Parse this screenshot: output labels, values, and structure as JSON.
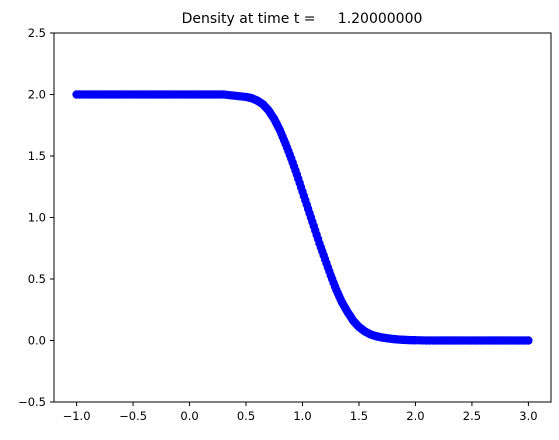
{
  "chart_data": {
    "type": "scatter",
    "title": "Density at time t =     1.20000000",
    "xlabel": "",
    "ylabel": "",
    "xlim": [
      -1.2,
      3.2
    ],
    "ylim": [
      -0.5,
      2.5
    ],
    "x_ticks": [
      -1.0,
      -0.5,
      0.0,
      0.5,
      1.0,
      1.5,
      2.0,
      2.5,
      3.0
    ],
    "x_tick_labels": [
      "−1.0",
      "−0.5",
      "0.0",
      "0.5",
      "1.0",
      "1.5",
      "2.0",
      "2.5",
      "3.0"
    ],
    "y_ticks": [
      -0.5,
      0.0,
      0.5,
      1.0,
      1.5,
      2.0,
      2.5
    ],
    "y_tick_labels": [
      "−0.5",
      "0.0",
      "0.5",
      "1.0",
      "1.5",
      "2.0",
      "2.5"
    ],
    "grid": false,
    "legend": "none",
    "marker_color": "#0000ff",
    "series": [
      {
        "x": [
          -1.0,
          -0.9,
          -0.8,
          -0.7,
          -0.6,
          -0.5,
          -0.4,
          -0.3,
          -0.2,
          -0.1,
          0.0,
          0.1,
          0.2,
          0.3,
          0.4,
          0.5,
          0.55,
          0.6,
          0.65,
          0.7,
          0.75,
          0.8,
          0.85,
          0.9,
          0.95,
          1.0,
          1.05,
          1.1,
          1.15,
          1.2,
          1.25,
          1.3,
          1.35,
          1.4,
          1.45,
          1.5,
          1.55,
          1.6,
          1.65,
          1.7,
          1.75,
          1.8,
          1.85,
          1.9,
          1.95,
          2.0,
          2.1,
          2.2,
          2.3,
          2.4,
          2.5,
          2.6,
          2.7,
          2.8,
          2.9,
          3.0
        ],
        "y": [
          2.0,
          2.0,
          2.0,
          2.0,
          2.0,
          2.0,
          2.0,
          2.0,
          2.0,
          2.0,
          2.0,
          2.0,
          2.0,
          2.0,
          1.99,
          1.98,
          1.97,
          1.95,
          1.92,
          1.87,
          1.8,
          1.71,
          1.6,
          1.48,
          1.35,
          1.21,
          1.07,
          0.93,
          0.79,
          0.66,
          0.53,
          0.41,
          0.31,
          0.23,
          0.16,
          0.11,
          0.075,
          0.05,
          0.035,
          0.025,
          0.018,
          0.012,
          0.008,
          0.005,
          0.003,
          0.002,
          0.0,
          0.0,
          0.0,
          0.0,
          0.0,
          0.0,
          0.0,
          0.0,
          0.0,
          0.0
        ]
      }
    ]
  }
}
